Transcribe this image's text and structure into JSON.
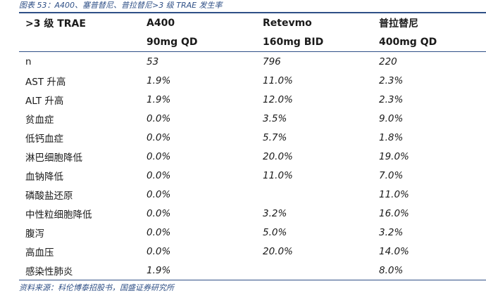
{
  "caption": "图表 53：A400、塞普替尼、普拉替尼>3 级 TRAE 发生率",
  "header": {
    "col0": ">3 级 TRAE",
    "col1_line1": "A400",
    "col1_line2": "90mg QD",
    "col2_line1": "Retevmo",
    "col2_line2": "160mg BID",
    "col3_line1": "普拉替尼",
    "col3_line2": "400mg QD"
  },
  "rows": [
    {
      "label": "n",
      "a400": "53",
      "retevmo": "796",
      "pralsetinib": "220"
    },
    {
      "label": "AST 升高",
      "a400": "1.9%",
      "retevmo": "11.0%",
      "pralsetinib": "2.3%"
    },
    {
      "label": "ALT 升高",
      "a400": "1.9%",
      "retevmo": "12.0%",
      "pralsetinib": "2.3%"
    },
    {
      "label": "贫血症",
      "a400": "0.0%",
      "retevmo": "3.5%",
      "pralsetinib": "9.0%"
    },
    {
      "label": "低钙血症",
      "a400": "0.0%",
      "retevmo": "5.7%",
      "pralsetinib": "1.8%"
    },
    {
      "label": "淋巴细胞降低",
      "a400": "0.0%",
      "retevmo": "20.0%",
      "pralsetinib": "19.0%"
    },
    {
      "label": "血钠降低",
      "a400": "0.0%",
      "retevmo": "11.0%",
      "pralsetinib": "7.0%"
    },
    {
      "label": "磷酸盐还原",
      "a400": "0.0%",
      "retevmo": "",
      "pralsetinib": "11.0%"
    },
    {
      "label": "中性粒细胞降低",
      "a400": "0.0%",
      "retevmo": "3.2%",
      "pralsetinib": "16.0%"
    },
    {
      "label": "腹泻",
      "a400": "0.0%",
      "retevmo": "5.0%",
      "pralsetinib": "3.2%"
    },
    {
      "label": "高血压",
      "a400": "0.0%",
      "retevmo": "20.0%",
      "pralsetinib": "14.0%"
    },
    {
      "label": "感染性肺炎",
      "a400": "1.9%",
      "retevmo": "",
      "pralsetinib": "8.0%"
    }
  ],
  "source": "资料来源：科伦博泰招股书，国盛证券研究所"
}
